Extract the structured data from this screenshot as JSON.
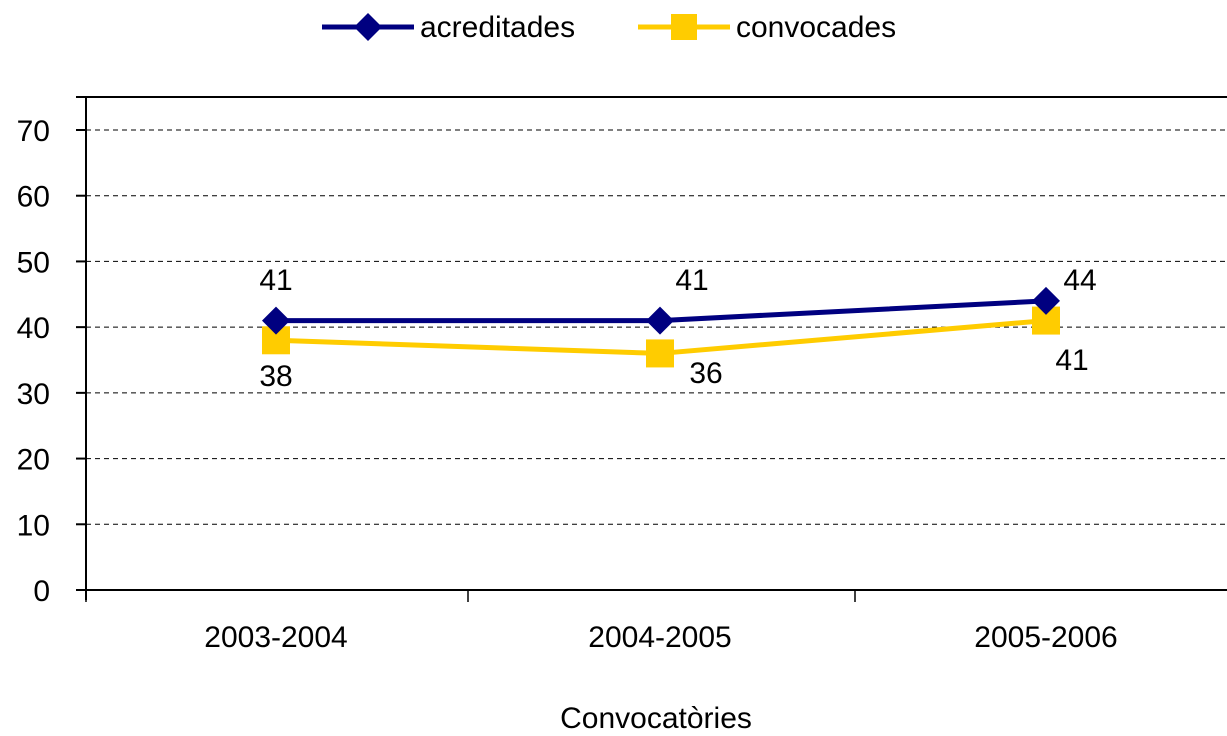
{
  "chart_data": {
    "type": "line",
    "title": "",
    "xlabel": "Convocatòries",
    "ylabel": "",
    "categories": [
      "2003-2004",
      "2004-2005",
      "2005-2006"
    ],
    "ylim": [
      0,
      70
    ],
    "yticks": [
      0,
      10,
      20,
      30,
      40,
      50,
      60,
      70
    ],
    "grid": "horizontal-dashed",
    "legend_position": "top",
    "series": [
      {
        "name": "acreditades",
        "values": [
          41,
          41,
          44
        ],
        "data_labels": [
          "41",
          "41",
          "44"
        ],
        "label_position": "above",
        "color": "#000080",
        "marker": "diamond"
      },
      {
        "name": "convocades",
        "values": [
          38,
          36,
          41
        ],
        "data_labels": [
          "38",
          "36",
          "41"
        ],
        "label_position": "below",
        "color": "#FFCC00",
        "marker": "square"
      }
    ]
  }
}
